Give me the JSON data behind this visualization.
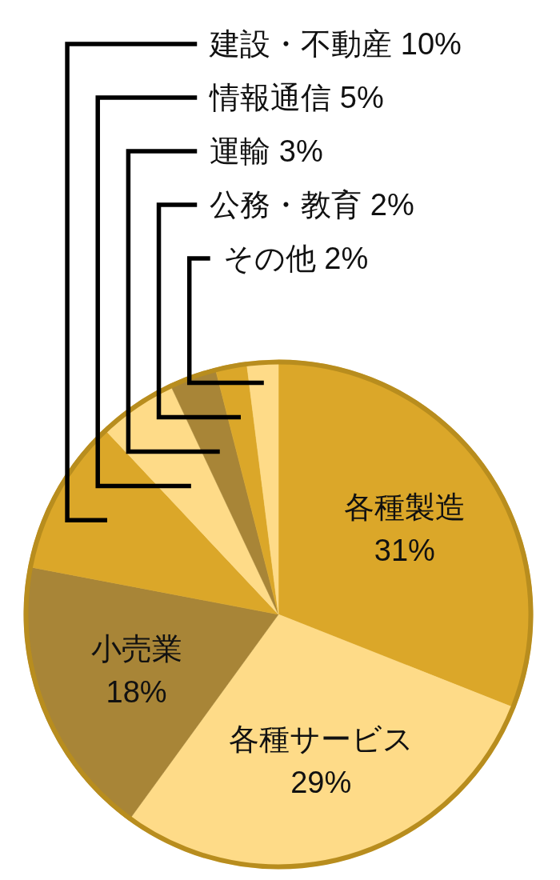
{
  "chart_data": {
    "type": "pie",
    "categories": [
      "各種製造",
      "各種サービス",
      "小売業",
      "建設・不動産",
      "情報通信",
      "運輸",
      "公務・教育",
      "その他"
    ],
    "values": [
      31,
      29,
      18,
      10,
      5,
      3,
      2,
      2
    ],
    "value_labels": [
      "31%",
      "29%",
      "18%",
      "10%",
      "5%",
      "3%",
      "2%",
      "2%"
    ],
    "colors": [
      "#dba729",
      "#fedb88",
      "#a88537",
      "#dba729",
      "#fedb88",
      "#a88537",
      "#dba729",
      "#fedb88"
    ]
  }
}
